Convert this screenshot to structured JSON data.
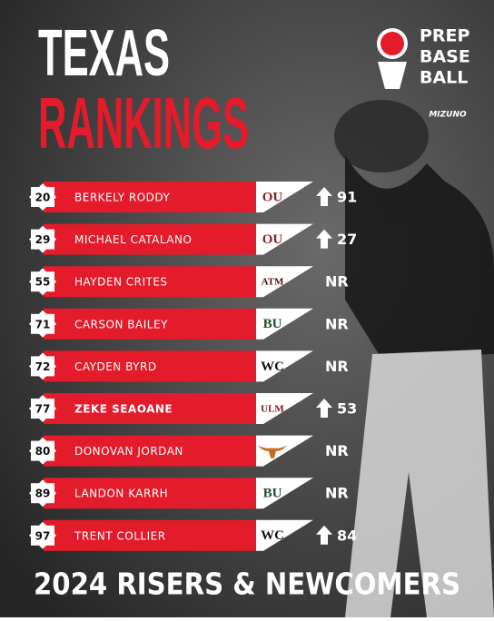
{
  "header": {
    "title_line1": "TEXAS",
    "title_line2": "RANKINGS",
    "brand": [
      "PREP",
      "BASE",
      "BALL"
    ],
    "sponsor": "MIZUNO"
  },
  "rows": [
    {
      "rank": 20,
      "name": "BERKELY RODDY",
      "logo": "OU",
      "logo_color": "#8c1d1d",
      "change": 91
    },
    {
      "rank": 29,
      "name": "MICHAEL CATALANO",
      "logo": "OU",
      "logo_color": "#8c1d1d",
      "change": 27
    },
    {
      "rank": 55,
      "name": "HAYDEN CRITES",
      "logo": "ATM",
      "logo_color": "#5a0f12",
      "change": "NR"
    },
    {
      "rank": 71,
      "name": "CARSON BAILEY",
      "logo": "BU",
      "logo_color": "#1f4d2b",
      "change": "NR"
    },
    {
      "rank": 72,
      "name": "CAYDEN BYRD",
      "logo": "WC",
      "logo_color": "#111111",
      "change": "NR"
    },
    {
      "rank": 77,
      "name": "ZEKE SEAOANE",
      "logo": "ULM",
      "logo_color": "#7a1624",
      "change": 53
    },
    {
      "rank": 80,
      "name": "DONOVAN JORDAN",
      "logo_color": "#c96a1a",
      "change": "NR"
    },
    {
      "rank": 89,
      "name": "LANDON KARRH",
      "logo": "BU",
      "logo_color": "#1f4d2b",
      "change": "NR"
    },
    {
      "rank": 97,
      "name": "TRENT COLLIER",
      "logo": "WC",
      "logo_color": "#111111",
      "change": 84
    }
  ],
  "footer": "2024 RISERS & NEWCOMERS"
}
